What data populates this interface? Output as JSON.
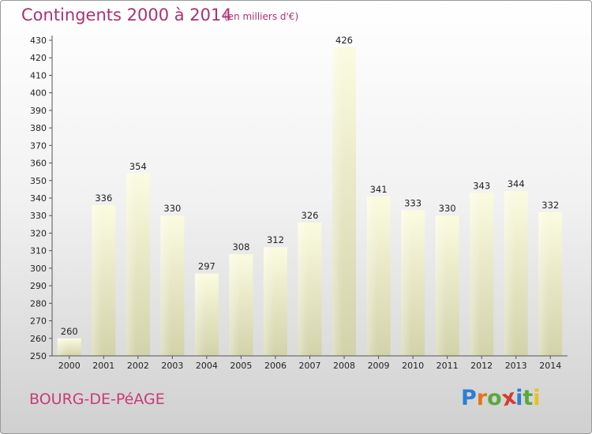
{
  "title": "Contingents 2000 à 2014",
  "subtitle": "(en milliers d'€)",
  "commune": "BOURG-DE-PéAGE",
  "logo": {
    "letters": [
      "P",
      "r",
      "o",
      "x",
      "i",
      "t",
      "i"
    ],
    "colors": [
      "#2a7fd4",
      "#e8731a",
      "#5aa83c",
      "#d63a2e",
      "#2a7fd4",
      "#5aa83c",
      "#e8c21a"
    ]
  },
  "chart_data": {
    "type": "bar",
    "categories": [
      "2000",
      "2001",
      "2002",
      "2003",
      "2004",
      "2005",
      "2006",
      "2007",
      "2008",
      "2009",
      "2010",
      "2011",
      "2012",
      "2013",
      "2014"
    ],
    "values": [
      260,
      336,
      354,
      330,
      297,
      308,
      312,
      326,
      426,
      341,
      333,
      330,
      343,
      344,
      332
    ],
    "title": "Contingents 2000 à 2014",
    "subtitle": "(en milliers d'€)",
    "ylim": [
      250,
      430
    ],
    "ytick_step": 10,
    "grid": false,
    "bar_color": "#f4f4c8"
  }
}
